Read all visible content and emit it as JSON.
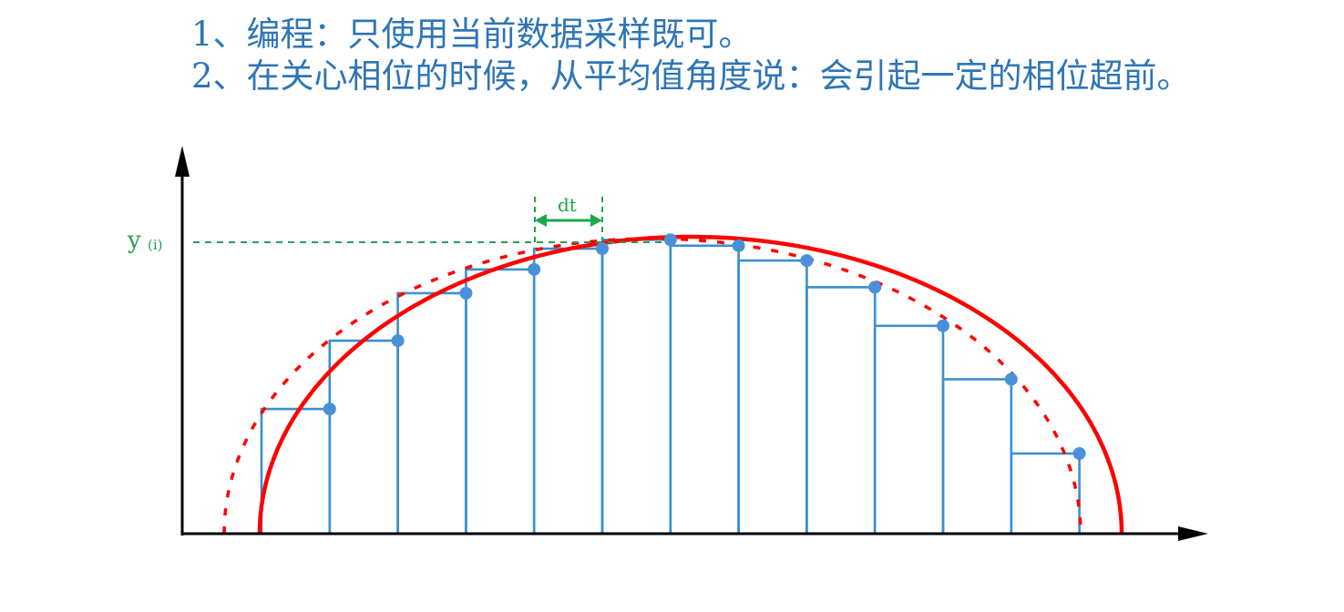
{
  "notes": [
    "1、编程：只使用当前数据采样既可。",
    "2、在关心相位的时候，从平均值角度说：会引起一定的相位超前。"
  ],
  "labels": {
    "y_main": "y",
    "y_sub": "(i)",
    "dt": "dt"
  },
  "colors": {
    "text": "#2e75b6",
    "curve": "#ff0000",
    "steps": "#3a8fd0",
    "points": "#4a90d9",
    "guide": "#2a9d58",
    "axis": "#000000"
  },
  "samples": [
    0.42,
    0.65,
    0.81,
    0.89,
    0.96,
    0.99,
    0.97,
    0.92,
    0.83,
    0.7,
    0.52,
    0.27
  ]
}
